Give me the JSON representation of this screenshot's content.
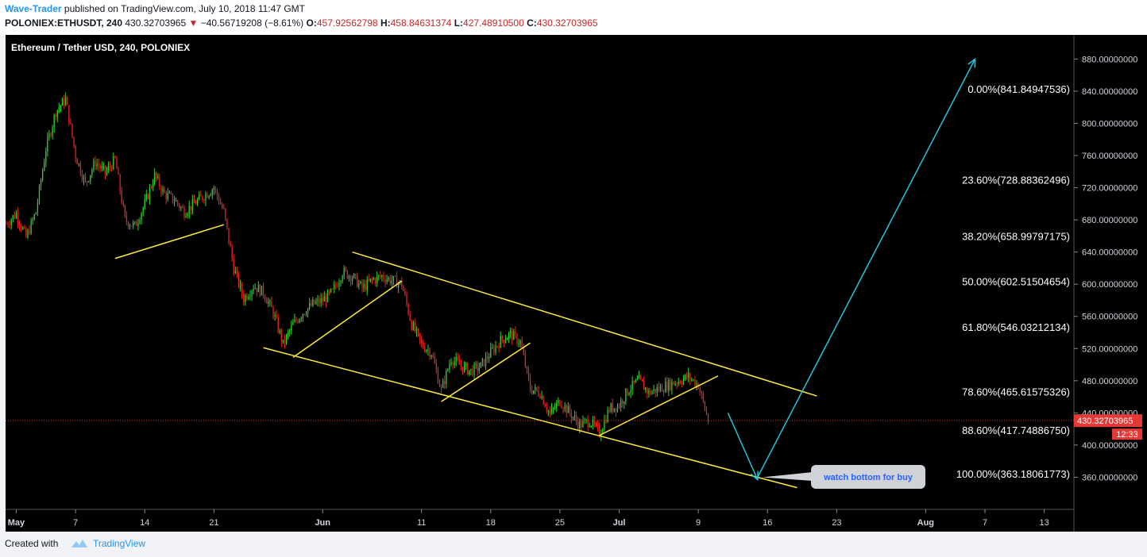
{
  "header": {
    "author": "Wave-Trader",
    "published_text": " published on TradingView.com, July 10, 2018 11:47 GMT",
    "symbol": "POLONIEX:ETHUSDT, 240",
    "last": "430.32703965",
    "change": "−40.56719208 (−8.61%)",
    "open_label": "O:",
    "open": "457.92562798",
    "high_label": "H:",
    "high": "458.84631374",
    "low_label": "L:",
    "low": "427.48910500",
    "close_label": "C:",
    "close": "430.32703965"
  },
  "footer": {
    "created": "Created with",
    "brand": "TradingView"
  },
  "colors": {
    "background": "#000000",
    "up": "#2ed630",
    "down": "#e82424",
    "trendline": "#ffeb3b",
    "arrow": "#26c6da",
    "price_line": "#e53935",
    "axis_text": "#d1d4dc",
    "fib_text": "#ffffff"
  },
  "chart_data": {
    "type": "candlestick",
    "title": "Ethereum / Tether USD, 240, POLONIEX",
    "x_start": "2018-04-30",
    "x_end": "2018-08-16",
    "ylim": [
      320,
      910
    ],
    "y_ticks": [
      "880.00000000",
      "840.00000000",
      "800.00000000",
      "760.00000000",
      "720.00000000",
      "680.00000000",
      "640.00000000",
      "600.00000000",
      "560.00000000",
      "520.00000000",
      "480.00000000",
      "440.00000000",
      "400.00000000",
      "360.00000000"
    ],
    "x_ticks": [
      "May",
      "7",
      "14",
      "21",
      "Jun",
      "11",
      "18",
      "25",
      "Jul",
      "9",
      "16",
      "23",
      "Aug",
      "7",
      "13"
    ],
    "grid": false,
    "current_price": {
      "value": 430.32703965,
      "label": "430.32703965",
      "countdown": "12:33"
    },
    "price_path": [
      [
        "2018-04-30",
        675
      ],
      [
        "2018-05-01",
        688
      ],
      [
        "2018-05-02",
        658
      ],
      [
        "2018-05-03",
        690
      ],
      [
        "2018-05-04",
        768
      ],
      [
        "2018-05-05",
        815
      ],
      [
        "2018-05-06",
        830
      ],
      [
        "2018-05-07",
        760
      ],
      [
        "2018-05-08",
        725
      ],
      [
        "2018-05-09",
        752
      ],
      [
        "2018-05-10",
        738
      ],
      [
        "2018-05-11",
        755
      ],
      [
        "2018-05-12",
        680
      ],
      [
        "2018-05-13",
        672
      ],
      [
        "2018-05-14",
        700
      ],
      [
        "2018-05-15",
        735
      ],
      [
        "2018-05-16",
        712
      ],
      [
        "2018-05-17",
        705
      ],
      [
        "2018-05-18",
        690
      ],
      [
        "2018-05-19",
        700
      ],
      [
        "2018-05-20",
        710
      ],
      [
        "2018-05-21",
        720
      ],
      [
        "2018-05-22",
        690
      ],
      [
        "2018-05-23",
        620
      ],
      [
        "2018-05-24",
        582
      ],
      [
        "2018-05-25",
        598
      ],
      [
        "2018-05-26",
        590
      ],
      [
        "2018-05-27",
        565
      ],
      [
        "2018-05-28",
        525
      ],
      [
        "2018-05-29",
        550
      ],
      [
        "2018-05-30",
        565
      ],
      [
        "2018-05-31",
        575
      ],
      [
        "2018-06-01",
        580
      ],
      [
        "2018-06-02",
        590
      ],
      [
        "2018-06-03",
        615
      ],
      [
        "2018-06-04",
        610
      ],
      [
        "2018-06-05",
        595
      ],
      [
        "2018-06-06",
        605
      ],
      [
        "2018-06-07",
        610
      ],
      [
        "2018-06-08",
        605
      ],
      [
        "2018-06-09",
        600
      ],
      [
        "2018-06-10",
        550
      ],
      [
        "2018-06-11",
        525
      ],
      [
        "2018-06-12",
        515
      ],
      [
        "2018-06-13",
        468
      ],
      [
        "2018-06-14",
        508
      ],
      [
        "2018-06-15",
        498
      ],
      [
        "2018-06-16",
        492
      ],
      [
        "2018-06-17",
        498
      ],
      [
        "2018-06-18",
        515
      ],
      [
        "2018-06-19",
        530
      ],
      [
        "2018-06-20",
        538
      ],
      [
        "2018-06-21",
        528
      ],
      [
        "2018-06-22",
        470
      ],
      [
        "2018-06-23",
        465
      ],
      [
        "2018-06-24",
        438
      ],
      [
        "2018-06-25",
        455
      ],
      [
        "2018-06-26",
        440
      ],
      [
        "2018-06-27",
        425
      ],
      [
        "2018-06-28",
        430
      ],
      [
        "2018-06-29",
        415
      ],
      [
        "2018-06-30",
        445
      ],
      [
        "2018-07-01",
        450
      ],
      [
        "2018-07-02",
        470
      ],
      [
        "2018-07-03",
        480
      ],
      [
        "2018-07-04",
        465
      ],
      [
        "2018-07-05",
        470
      ],
      [
        "2018-07-06",
        475
      ],
      [
        "2018-07-07",
        480
      ],
      [
        "2018-07-08",
        485
      ],
      [
        "2018-07-09",
        475
      ],
      [
        "2018-07-10",
        430
      ]
    ],
    "trendlines": [
      {
        "from": [
          "2018-05-11",
          632
        ],
        "to": [
          "2018-05-22",
          674
        ]
      },
      {
        "from": [
          "2018-06-04",
          640
        ],
        "to": [
          "2018-07-21",
          461
        ]
      },
      {
        "from": [
          "2018-05-26",
          521
        ],
        "to": [
          "2018-07-19",
          347
        ]
      },
      {
        "from": [
          "2018-05-29",
          509
        ],
        "to": [
          "2018-06-09",
          604
        ]
      },
      {
        "from": [
          "2018-06-13",
          454
        ],
        "to": [
          "2018-06-22",
          527
        ]
      },
      {
        "from": [
          "2018-06-29",
          412
        ],
        "to": [
          "2018-07-11",
          486
        ]
      }
    ],
    "arrows": [
      {
        "from": [
          "2018-07-12",
          440
        ],
        "to": [
          "2018-07-15",
          357
        ]
      },
      {
        "from": [
          "2018-07-15",
          360
        ],
        "to": [
          "2018-08-06",
          880
        ]
      }
    ],
    "fib_levels": [
      {
        "label": "0.00%(841.84947536)",
        "value": 841.84947536
      },
      {
        "label": "23.60%(728.88362496)",
        "value": 728.88362496
      },
      {
        "label": "38.20%(658.99797175)",
        "value": 658.99797175
      },
      {
        "label": "50.00%(602.51504654)",
        "value": 602.51504654
      },
      {
        "label": "61.80%(546.03212134)",
        "value": 546.03212134
      },
      {
        "label": "78.60%(465.61575326)",
        "value": 465.61575326
      },
      {
        "label": "88.60%(417.74886750)",
        "value": 417.7488675
      },
      {
        "label": "100.00%(363.18061773)",
        "value": 363.18061773
      }
    ],
    "annotation": {
      "text": "watch bottom for buy",
      "anchor": [
        "2018-07-15",
        360
      ]
    }
  }
}
